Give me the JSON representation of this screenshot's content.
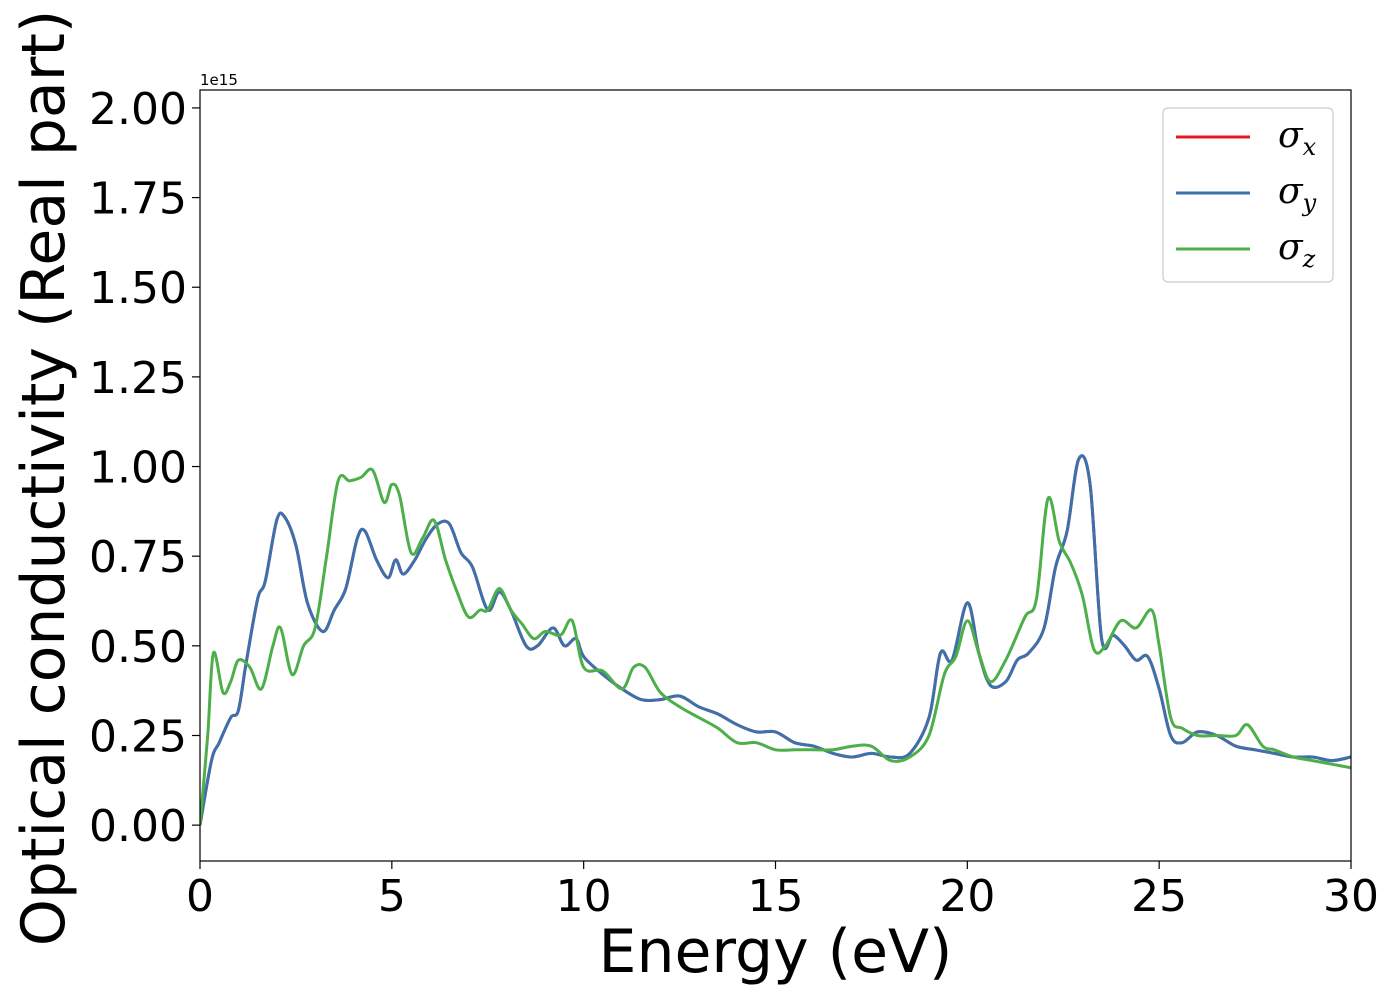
{
  "chart_data": {
    "type": "line",
    "xlabel": "Energy (eV)",
    "ylabel": "Optical conductivity (Real part)",
    "offset_label": "1e15",
    "xlim": [
      0,
      30
    ],
    "ylim": [
      -0.1,
      2.05
    ],
    "x_ticks": [
      "0",
      "5",
      "10",
      "15",
      "20",
      "25",
      "30"
    ],
    "y_ticks": [
      "0.00",
      "0.25",
      "0.50",
      "0.75",
      "1.00",
      "1.25",
      "1.50",
      "1.75",
      "2.00"
    ],
    "legend_position": "top-right",
    "series": [
      {
        "name": "σx",
        "symbol": "σ",
        "subscript": "x",
        "color": "#e41a1c",
        "x": [
          0,
          0.3,
          0.5,
          0.8,
          1.0,
          1.2,
          1.5,
          1.7,
          2.0,
          2.2,
          2.5,
          2.8,
          3.2,
          3.5,
          3.8,
          4.1,
          4.3,
          4.6,
          4.9,
          5.1,
          5.3,
          5.6,
          5.9,
          6.2,
          6.5,
          6.8,
          7.1,
          7.5,
          7.8,
          8.1,
          8.5,
          8.8,
          9.2,
          9.5,
          9.8,
          10.0,
          10.5,
          11.0,
          11.5,
          12.0,
          12.5,
          13.0,
          13.5,
          14.0,
          14.5,
          15.0,
          15.5,
          16.0,
          16.5,
          17.0,
          17.5,
          18.0,
          18.5,
          19.0,
          19.3,
          19.6,
          20.0,
          20.3,
          20.6,
          21.0,
          21.3,
          21.6,
          22.0,
          22.3,
          22.6,
          22.9,
          23.2,
          23.5,
          23.8,
          24.1,
          24.4,
          24.7,
          25.0,
          25.3,
          25.6,
          26.0,
          26.5,
          27.0,
          27.5,
          28.0,
          28.5,
          29.0,
          29.5,
          30.0
        ],
        "values": [
          0.0,
          0.18,
          0.23,
          0.3,
          0.32,
          0.45,
          0.63,
          0.68,
          0.85,
          0.86,
          0.78,
          0.62,
          0.54,
          0.6,
          0.66,
          0.8,
          0.82,
          0.74,
          0.69,
          0.74,
          0.7,
          0.74,
          0.8,
          0.84,
          0.84,
          0.76,
          0.72,
          0.6,
          0.65,
          0.6,
          0.5,
          0.5,
          0.55,
          0.5,
          0.52,
          0.47,
          0.42,
          0.38,
          0.35,
          0.35,
          0.36,
          0.33,
          0.31,
          0.28,
          0.26,
          0.26,
          0.23,
          0.22,
          0.2,
          0.19,
          0.2,
          0.19,
          0.2,
          0.3,
          0.48,
          0.46,
          0.62,
          0.48,
          0.39,
          0.4,
          0.46,
          0.48,
          0.55,
          0.72,
          0.82,
          1.02,
          0.95,
          0.52,
          0.53,
          0.5,
          0.46,
          0.47,
          0.38,
          0.25,
          0.23,
          0.26,
          0.25,
          0.22,
          0.21,
          0.2,
          0.19,
          0.19,
          0.18,
          0.19
        ]
      },
      {
        "name": "σy",
        "symbol": "σ",
        "subscript": "y",
        "color": "#3b72ad",
        "x": [
          0,
          0.3,
          0.5,
          0.8,
          1.0,
          1.2,
          1.5,
          1.7,
          2.0,
          2.2,
          2.5,
          2.8,
          3.2,
          3.5,
          3.8,
          4.1,
          4.3,
          4.6,
          4.9,
          5.1,
          5.3,
          5.6,
          5.9,
          6.2,
          6.5,
          6.8,
          7.1,
          7.5,
          7.8,
          8.1,
          8.5,
          8.8,
          9.2,
          9.5,
          9.8,
          10.0,
          10.5,
          11.0,
          11.5,
          12.0,
          12.5,
          13.0,
          13.5,
          14.0,
          14.5,
          15.0,
          15.5,
          16.0,
          16.5,
          17.0,
          17.5,
          18.0,
          18.5,
          19.0,
          19.3,
          19.6,
          20.0,
          20.3,
          20.6,
          21.0,
          21.3,
          21.6,
          22.0,
          22.3,
          22.6,
          22.9,
          23.2,
          23.5,
          23.8,
          24.1,
          24.4,
          24.7,
          25.0,
          25.3,
          25.6,
          26.0,
          26.5,
          27.0,
          27.5,
          28.0,
          28.5,
          29.0,
          29.5,
          30.0
        ],
        "values": [
          0.0,
          0.18,
          0.23,
          0.3,
          0.32,
          0.45,
          0.63,
          0.68,
          0.85,
          0.86,
          0.78,
          0.62,
          0.54,
          0.6,
          0.66,
          0.8,
          0.82,
          0.74,
          0.69,
          0.74,
          0.7,
          0.74,
          0.8,
          0.84,
          0.84,
          0.76,
          0.72,
          0.6,
          0.65,
          0.6,
          0.5,
          0.5,
          0.55,
          0.5,
          0.52,
          0.47,
          0.42,
          0.38,
          0.35,
          0.35,
          0.36,
          0.33,
          0.31,
          0.28,
          0.26,
          0.26,
          0.23,
          0.22,
          0.2,
          0.19,
          0.2,
          0.19,
          0.2,
          0.3,
          0.48,
          0.46,
          0.62,
          0.48,
          0.39,
          0.4,
          0.46,
          0.48,
          0.55,
          0.72,
          0.82,
          1.02,
          0.95,
          0.52,
          0.53,
          0.5,
          0.46,
          0.47,
          0.38,
          0.25,
          0.23,
          0.26,
          0.25,
          0.22,
          0.21,
          0.2,
          0.19,
          0.19,
          0.18,
          0.19
        ]
      },
      {
        "name": "σz",
        "symbol": "σ",
        "subscript": "z",
        "color": "#4daf4a",
        "x": [
          0,
          0.2,
          0.35,
          0.6,
          0.8,
          1.0,
          1.3,
          1.6,
          1.9,
          2.1,
          2.4,
          2.7,
          3.0,
          3.3,
          3.6,
          3.9,
          4.2,
          4.5,
          4.8,
          5.0,
          5.2,
          5.5,
          5.8,
          6.1,
          6.4,
          6.7,
          7.0,
          7.3,
          7.5,
          7.8,
          8.1,
          8.4,
          8.7,
          9.0,
          9.4,
          9.7,
          10.0,
          10.5,
          11.0,
          11.3,
          11.6,
          12.0,
          12.5,
          13.0,
          13.5,
          14.0,
          14.5,
          15.0,
          15.5,
          16.0,
          16.5,
          17.0,
          17.5,
          18.0,
          18.5,
          19.0,
          19.4,
          19.7,
          20.0,
          20.3,
          20.6,
          21.0,
          21.5,
          21.8,
          22.1,
          22.4,
          22.7,
          23.0,
          23.3,
          23.6,
          24.0,
          24.4,
          24.8,
          25.0,
          25.3,
          25.6,
          26.0,
          26.5,
          27.0,
          27.3,
          27.7,
          28.0,
          28.5,
          29.0,
          29.5,
          30.0
        ],
        "values": [
          0.0,
          0.25,
          0.48,
          0.37,
          0.4,
          0.46,
          0.44,
          0.38,
          0.5,
          0.55,
          0.42,
          0.5,
          0.55,
          0.75,
          0.96,
          0.96,
          0.97,
          0.99,
          0.9,
          0.95,
          0.92,
          0.76,
          0.8,
          0.85,
          0.74,
          0.65,
          0.58,
          0.6,
          0.6,
          0.66,
          0.6,
          0.56,
          0.52,
          0.54,
          0.53,
          0.57,
          0.44,
          0.43,
          0.38,
          0.44,
          0.44,
          0.37,
          0.33,
          0.3,
          0.27,
          0.23,
          0.23,
          0.21,
          0.21,
          0.21,
          0.21,
          0.22,
          0.22,
          0.18,
          0.19,
          0.25,
          0.42,
          0.47,
          0.57,
          0.48,
          0.4,
          0.46,
          0.58,
          0.63,
          0.91,
          0.79,
          0.73,
          0.64,
          0.49,
          0.5,
          0.57,
          0.55,
          0.6,
          0.5,
          0.3,
          0.27,
          0.25,
          0.25,
          0.25,
          0.28,
          0.22,
          0.21,
          0.19,
          0.18,
          0.17,
          0.16
        ]
      }
    ]
  }
}
